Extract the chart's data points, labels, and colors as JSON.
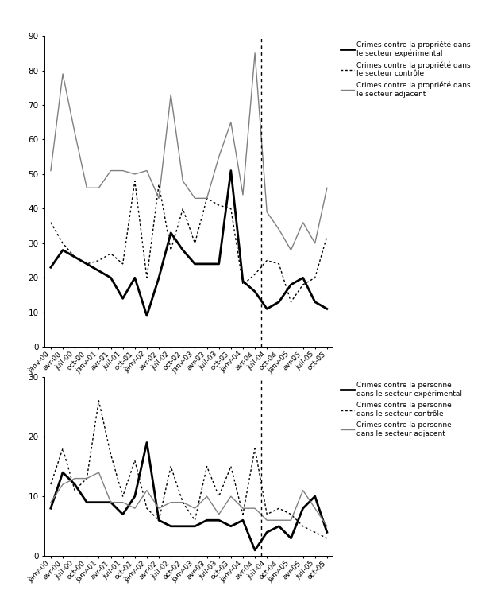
{
  "labels": [
    "janv-00",
    "avr-00",
    "juil-00",
    "oct-00",
    "janv-01",
    "avr-01",
    "juil-01",
    "oct-01",
    "janv-02",
    "avr-02",
    "juil-02",
    "oct-02",
    "janv-03",
    "avr-03",
    "juil-03",
    "oct-03",
    "janv-04",
    "avr-04",
    "juil-04",
    "oct-04",
    "janv-05",
    "avr-05",
    "juil-05",
    "oct-05"
  ],
  "prop_exp": [
    23,
    28,
    26,
    24,
    22,
    20,
    14,
    20,
    9,
    20,
    33,
    28,
    24,
    24,
    24,
    51,
    19,
    16,
    11,
    13,
    18,
    20,
    13,
    11
  ],
  "prop_ctrl": [
    36,
    30,
    26,
    24,
    25,
    27,
    24,
    48,
    20,
    47,
    28,
    40,
    30,
    43,
    41,
    40,
    18,
    21,
    25,
    24,
    13,
    18,
    20,
    32
  ],
  "prop_adj": [
    51,
    79,
    62,
    46,
    46,
    51,
    51,
    50,
    51,
    43,
    73,
    48,
    43,
    43,
    55,
    65,
    44,
    85,
    39,
    34,
    28,
    36,
    30,
    46
  ],
  "pers_exp": [
    8,
    14,
    12,
    9,
    9,
    9,
    7,
    10,
    19,
    6,
    5,
    5,
    5,
    6,
    6,
    5,
    6,
    1,
    4,
    5,
    3,
    8,
    10,
    4
  ],
  "pers_ctrl": [
    12,
    18,
    11,
    13,
    26,
    17,
    10,
    16,
    8,
    6,
    15,
    9,
    6,
    15,
    10,
    15,
    7,
    18,
    7,
    8,
    7,
    5,
    4,
    3
  ],
  "pers_adj": [
    9,
    12,
    13,
    13,
    14,
    9,
    9,
    8,
    11,
    8,
    9,
    9,
    8,
    10,
    7,
    10,
    8,
    8,
    6,
    6,
    6,
    11,
    8,
    5
  ],
  "vline_pos": 17.5,
  "prop_ylim": [
    0,
    90
  ],
  "pers_ylim": [
    0,
    30
  ],
  "prop_yticks": [
    0,
    10,
    20,
    30,
    40,
    50,
    60,
    70,
    80,
    90
  ],
  "pers_yticks": [
    0,
    10,
    20,
    30
  ],
  "legend1": [
    "Crimes contre la propriété dans\nle secteur expérimental",
    "Crimes contre la propriété dans\nle secteur contrôle",
    "Crimes contre la propriété dans\nle secteur adjacent"
  ],
  "legend2": [
    "Crimes contre la personne\ndans le secteur expérimental",
    "Crimes contre la personne\ndans le secteur contrôle",
    "Crimes contre la personne\ndans le secteur adjacent"
  ]
}
